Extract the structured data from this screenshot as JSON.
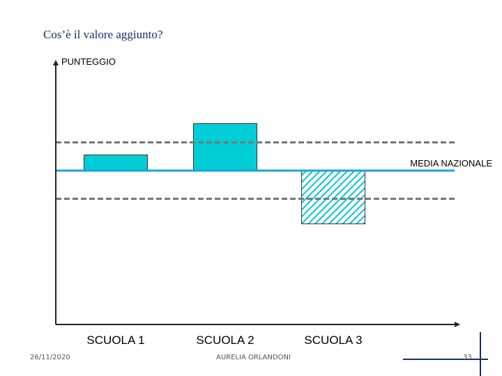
{
  "slide": {
    "title": "Cos’è il valore aggiunto?",
    "footer_date": "26/11/2020",
    "footer_author": "AURELIA ORLANDONI",
    "page_number": "33"
  },
  "chart_data": {
    "type": "bar",
    "title": "",
    "ylabel": "PUNTEGGIO",
    "xlabel": "",
    "categories": [
      "SCUOLA 1",
      "SCUOLA 2",
      "SCUOLA 3"
    ],
    "values": [
      0.5,
      1.5,
      -1.7
    ],
    "reference_line": {
      "label": "MEDIA NAZIONALE",
      "value": 0
    },
    "band": [
      -0.9,
      0.9
    ],
    "ylim": [
      -5,
      1.5
    ],
    "grid": false,
    "colors": {
      "bar": "#00ced6",
      "media_line": "#1ba4d6",
      "band_line": "#777777",
      "axis": "#222222"
    },
    "patterns": [
      "solid",
      "solid",
      "hatched"
    ]
  }
}
